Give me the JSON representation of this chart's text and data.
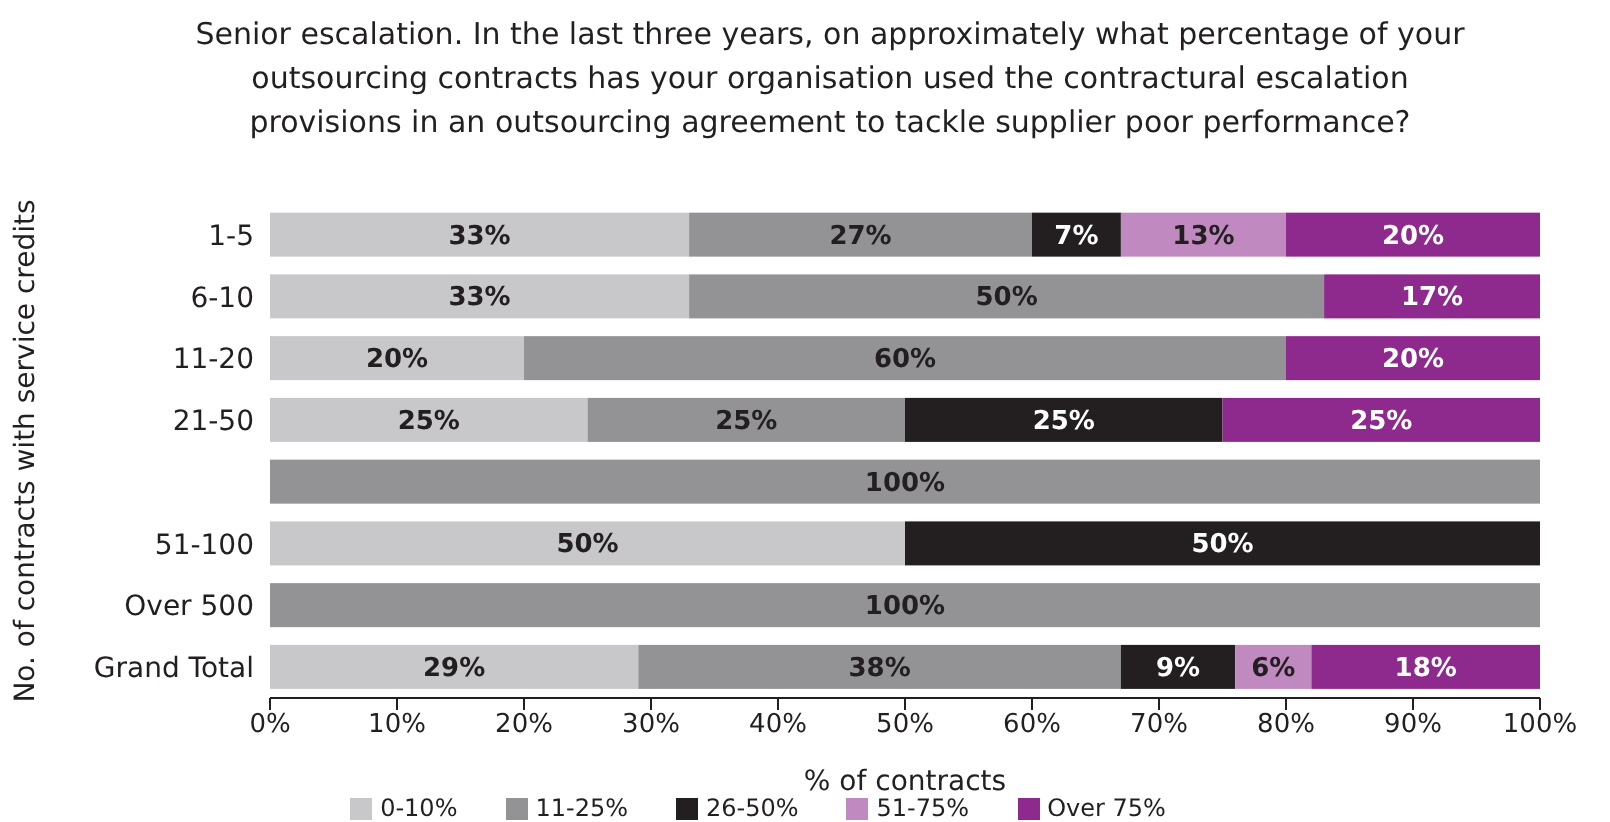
{
  "chart_data": {
    "type": "bar",
    "orientation": "horizontal",
    "stacked": true,
    "title": "Senior escalation. In the last three years, on approximately what percentage of your outsourcing contracts has your organisation used the contractural escalation provisions in an outsourcing agreement to tackle supplier poor performance?",
    "xlabel": "% of contracts",
    "ylabel": "No. of contracts with service credits",
    "categories": [
      "1-5",
      "6-10",
      "11-20",
      "21-50",
      null,
      "51-100",
      "Over 500",
      "Grand Total"
    ],
    "series": [
      {
        "name": "0-10%",
        "color": "#c8c8ca",
        "values": [
          33,
          33,
          20,
          25,
          null,
          50,
          null,
          29
        ],
        "value_labels": [
          "33%",
          "33%",
          "20%",
          "25%",
          null,
          "50%",
          null,
          "29%"
        ]
      },
      {
        "name": "11-25%",
        "color": "#939396",
        "values": [
          27,
          50,
          60,
          25,
          100,
          null,
          100,
          38
        ],
        "value_labels": [
          "27%",
          "50%",
          "60%",
          "25%",
          "100%",
          null,
          "100%",
          "38%"
        ]
      },
      {
        "name": "26-50%",
        "color": "#231f20",
        "values": [
          7,
          null,
          null,
          25,
          null,
          50,
          null,
          9
        ],
        "value_labels": [
          "7%",
          null,
          null,
          "25%",
          null,
          "50%",
          null,
          "9%"
        ]
      },
      {
        "name": "51-75%",
        "color": "#c08ac0",
        "values": [
          13,
          null,
          null,
          null,
          null,
          null,
          null,
          6
        ],
        "value_labels": [
          "13%",
          null,
          null,
          null,
          null,
          null,
          null,
          "6%"
        ]
      },
      {
        "name": "Over 75%",
        "color": "#8e2a8e",
        "values": [
          20,
          17,
          20,
          25,
          null,
          null,
          null,
          18
        ],
        "value_labels": [
          "20%",
          "17%",
          "20%",
          "25%",
          null,
          null,
          null,
          "18%"
        ]
      }
    ],
    "xlim": [
      0,
      100
    ],
    "xticks": [
      {
        "value": 0,
        "label": "0%"
      },
      {
        "value": 10,
        "label": "10%"
      },
      {
        "value": 20,
        "label": "20%"
      },
      {
        "value": 30,
        "label": "30%"
      },
      {
        "value": 40,
        "label": "40%"
      },
      {
        "value": 50,
        "label": "50%"
      },
      {
        "value": 60,
        "label": "60%"
      },
      {
        "value": 70,
        "label": "70%"
      },
      {
        "value": 80,
        "label": "80%"
      },
      {
        "value": 90,
        "label": "90%"
      },
      {
        "value": 100,
        "label": "100%"
      }
    ],
    "grid": false,
    "legend": "bottom"
  }
}
